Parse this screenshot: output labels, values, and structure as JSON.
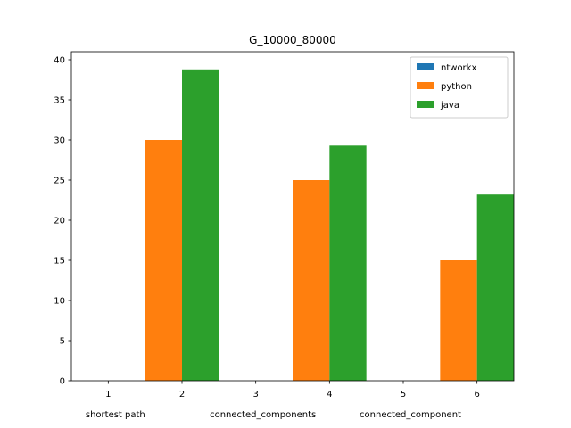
{
  "chart_data": {
    "type": "bar",
    "title": "G_10000_80000",
    "xlabel": "",
    "ylabel": "",
    "x_ticks": [
      1,
      2,
      3,
      4,
      5,
      6
    ],
    "xlim": [
      0.5,
      6.5
    ],
    "ylim": [
      0,
      41
    ],
    "y_ticks": [
      0,
      5,
      10,
      15,
      20,
      25,
      30,
      35,
      40
    ],
    "bar_width": 0.5,
    "group_labels": [
      {
        "x": 1,
        "label": "shortest path"
      },
      {
        "x": 3,
        "label": "connected_components"
      },
      {
        "x": 5,
        "label": "connected_component"
      }
    ],
    "series": [
      {
        "name": "ntworkx",
        "color": "#1f77b4",
        "x": [
          1,
          3,
          5
        ],
        "values": [
          0,
          0,
          0
        ]
      },
      {
        "name": "python",
        "color": "#ff7f0e",
        "x": [
          1.75,
          3.75,
          5.75
        ],
        "values": [
          30,
          25,
          15
        ]
      },
      {
        "name": "java",
        "color": "#2ca02c",
        "x": [
          2.25,
          4.25,
          6.25
        ],
        "values": [
          38.8,
          29.3,
          23.2
        ]
      }
    ],
    "legend_position": "top-right",
    "grid": false
  }
}
